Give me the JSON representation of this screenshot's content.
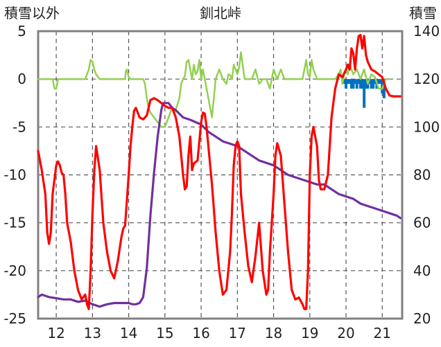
{
  "chart_data": {
    "type": "line",
    "title": "釧北峠",
    "ylabel_left": "積雪以外",
    "ylabel_right": "積雪",
    "x_ticks": [
      "12",
      "13",
      "14",
      "15",
      "16",
      "17",
      "18",
      "19",
      "20",
      "21"
    ],
    "x_tick_values": [
      12,
      13,
      14,
      15,
      16,
      17,
      18,
      19,
      20,
      21
    ],
    "x_range": [
      11.5,
      21.55
    ],
    "y_left_range": [
      -25,
      5
    ],
    "y_left_ticks": [
      "5",
      "0",
      "-5",
      "-10",
      "-15",
      "-20",
      "-25"
    ],
    "y_left_tick_values": [
      5,
      0,
      -5,
      -10,
      -15,
      -20,
      -25
    ],
    "y_right_range": [
      20,
      140
    ],
    "y_right_ticks": [
      "140",
      "120",
      "100",
      "80",
      "60",
      "40",
      "20"
    ],
    "y_right_tick_values": [
      140,
      120,
      100,
      80,
      60,
      40,
      20
    ],
    "grid": "dashed vertical and horizontal",
    "colors": {
      "temperature": "#ff0000",
      "wind": "#92d050",
      "precipitation": "#0070c0",
      "snow_depth": "#7030a0",
      "grid": "#555555",
      "frame": "#808080"
    },
    "series": [
      {
        "name": "temperature",
        "axis": "left",
        "color": "#ff0000",
        "x": [
          11.5,
          11.6,
          11.7,
          11.75,
          11.8,
          11.85,
          11.9,
          12.0,
          12.05,
          12.1,
          12.15,
          12.2,
          12.25,
          12.3,
          12.4,
          12.5,
          12.6,
          12.7,
          12.8,
          12.85,
          12.9,
          12.95,
          13.0,
          13.05,
          13.1,
          13.2,
          13.3,
          13.4,
          13.5,
          13.6,
          13.7,
          13.8,
          13.85,
          13.9,
          14.0,
          14.05,
          14.1,
          14.15,
          14.2,
          14.3,
          14.4,
          14.45,
          14.5,
          14.6,
          14.7,
          14.8,
          14.9,
          15.0,
          15.1,
          15.2,
          15.3,
          15.4,
          15.5,
          15.55,
          15.6,
          15.65,
          15.7,
          15.75,
          15.8,
          15.9,
          16.0,
          16.05,
          16.1,
          16.15,
          16.2,
          16.3,
          16.4,
          16.5,
          16.6,
          16.7,
          16.8,
          16.85,
          16.9,
          16.95,
          17.0,
          17.05,
          17.1,
          17.2,
          17.3,
          17.4,
          17.5,
          17.6,
          17.7,
          17.8,
          17.85,
          17.9,
          18.0,
          18.05,
          18.1,
          18.2,
          18.3,
          18.4,
          18.5,
          18.6,
          18.7,
          18.8,
          18.85,
          18.9,
          18.95,
          19.0,
          19.05,
          19.1,
          19.2,
          19.25,
          19.3,
          19.4,
          19.5,
          19.6,
          19.7,
          19.8,
          19.9,
          20.0,
          20.05,
          20.1,
          20.15,
          20.2,
          20.25,
          20.3,
          20.35,
          20.4,
          20.45,
          20.5,
          20.55,
          20.6,
          20.7,
          20.8,
          20.9,
          21.0,
          21.1,
          21.2,
          21.3,
          21.4,
          21.5
        ],
        "values": [
          -7.5,
          -9.5,
          -12,
          -16,
          -17.2,
          -16,
          -12,
          -9,
          -8.6,
          -9,
          -9.8,
          -10,
          -12,
          -15,
          -17,
          -20,
          -22,
          -23,
          -22.5,
          -23.5,
          -24,
          -20,
          -14,
          -9.5,
          -7,
          -9.5,
          -15,
          -18,
          -20,
          -20.8,
          -19,
          -16.5,
          -15.6,
          -15.3,
          -10,
          -7,
          -5,
          -3.3,
          -3,
          -4,
          -4.2,
          -4,
          -3.8,
          -2.2,
          -2,
          -2.2,
          -2.5,
          -2.8,
          -3,
          -3,
          -4,
          -6,
          -10,
          -11.5,
          -11.2,
          -8,
          -6,
          -9.5,
          -8.8,
          -8.5,
          -4.5,
          -3.5,
          -3.6,
          -5,
          -7,
          -11,
          -16,
          -20,
          -22.5,
          -22,
          -18,
          -14,
          -9,
          -7,
          -6.5,
          -7,
          -12,
          -16,
          -19.5,
          -21.2,
          -18.5,
          -15,
          -20,
          -22.5,
          -22,
          -18,
          -12,
          -8,
          -6.7,
          -8,
          -13,
          -18,
          -22,
          -23,
          -22.8,
          -23.5,
          -24,
          -24,
          -20,
          -10,
          -6,
          -5,
          -7,
          -10.5,
          -11.5,
          -11.5,
          -10,
          -4,
          -1,
          0.5,
          0.2,
          1,
          1.5,
          1,
          3.2,
          2.7,
          1,
          3.2,
          4.5,
          4.6,
          3.2,
          4.5,
          2.5,
          1.8,
          1,
          0.8,
          0.5,
          0.2,
          -1,
          -1.7,
          -1.8,
          -1.8,
          -1.8
        ]
      },
      {
        "name": "wind",
        "axis": "left",
        "color": "#92d050",
        "x": [
          11.5,
          11.8,
          11.9,
          11.95,
          12.0,
          12.05,
          12.1,
          12.2,
          12.8,
          12.9,
          12.95,
          13.0,
          13.05,
          13.1,
          13.2,
          13.8,
          13.9,
          13.92,
          13.95,
          14.0,
          14.05,
          14.1,
          14.2,
          14.4,
          14.45,
          14.5,
          14.55,
          14.6,
          14.7,
          14.8,
          14.9,
          15.0,
          15.1,
          15.2,
          15.25,
          15.3,
          15.4,
          15.45,
          15.5,
          15.55,
          15.6,
          15.65,
          15.7,
          15.75,
          15.8,
          15.85,
          15.9,
          15.95,
          16.0,
          16.05,
          16.1,
          16.15,
          16.2,
          16.25,
          16.3,
          16.35,
          16.4,
          16.5,
          16.6,
          16.7,
          16.75,
          16.8,
          16.85,
          16.9,
          16.95,
          17.0,
          17.05,
          17.1,
          17.2,
          17.4,
          17.5,
          17.6,
          17.7,
          17.8,
          17.9,
          18.0,
          18.1,
          18.2,
          18.3,
          18.8,
          18.85,
          18.9,
          18.95,
          19.0,
          19.05,
          19.1,
          19.2,
          19.3,
          19.4,
          19.5,
          19.6,
          19.7,
          19.8,
          19.85,
          19.9,
          19.95,
          20.0,
          20.05,
          20.1,
          20.2,
          20.3,
          20.4,
          20.5,
          20.6,
          20.7,
          20.8,
          20.9,
          21.0,
          21.05,
          21.1,
          21.2
        ],
        "values": [
          0,
          0,
          0,
          -1,
          -1,
          0,
          0,
          0,
          0,
          1,
          2,
          1.8,
          1,
          0.5,
          0,
          0,
          0,
          0.8,
          1,
          0.2,
          0,
          0,
          0,
          0,
          -0.5,
          -2,
          -3,
          -3.5,
          -4,
          -4.5,
          -5,
          -5,
          -4,
          -3,
          -3.6,
          -3.2,
          -2,
          -0.5,
          0,
          0.3,
          1.8,
          2,
          1,
          0,
          1.5,
          0.5,
          0.8,
          2,
          0,
          1,
          0,
          -1,
          -2,
          -3,
          -4,
          -2,
          0,
          1,
          0,
          -0.5,
          0.5,
          0.4,
          0,
          1.5,
          1,
          0.5,
          1.2,
          2.8,
          0,
          0,
          1,
          -0.5,
          0,
          0,
          -1,
          1,
          0,
          1,
          0,
          0,
          1,
          2,
          0.5,
          0.2,
          2,
          1,
          0,
          0,
          0,
          0,
          0,
          0,
          0.5,
          1,
          -0.5,
          0.5,
          1,
          0.5,
          1.5,
          0.5,
          1,
          0,
          1,
          -0.5,
          0.5,
          0.2,
          -1,
          -1,
          -0.5,
          0,
          0
        ]
      },
      {
        "name": "precipitation",
        "axis": "left",
        "color": "#0070c0",
        "x": [
          19.95,
          20.0,
          20.05,
          20.1,
          20.15,
          20.2,
          20.25,
          20.3,
          20.35,
          20.4,
          20.45,
          20.5,
          20.55,
          20.6,
          20.65,
          20.7,
          20.75,
          20.8,
          20.85,
          20.9,
          20.95,
          21.0,
          21.05
        ],
        "values": [
          -0.5,
          -1,
          -0.5,
          -0.5,
          -1,
          -1,
          -0.5,
          -1,
          -0.5,
          -1,
          -1,
          -3,
          -1,
          -1,
          -0.5,
          -1,
          -1,
          -0.5,
          -1,
          -0.5,
          -0.5,
          -1.5,
          -2
        ]
      },
      {
        "name": "snow_depth",
        "axis": "right",
        "color": "#7030a0",
        "x": [
          11.5,
          11.6,
          11.7,
          11.8,
          12.0,
          12.2,
          12.4,
          12.6,
          12.8,
          13.0,
          13.1,
          13.2,
          13.4,
          13.6,
          13.8,
          14.0,
          14.1,
          14.2,
          14.3,
          14.4,
          14.5,
          14.6,
          14.7,
          14.8,
          14.9,
          14.95,
          15.0,
          15.1,
          15.2,
          15.3,
          15.5,
          15.7,
          16.0,
          16.2,
          16.4,
          16.6,
          16.8,
          17.0,
          17.2,
          17.4,
          17.6,
          17.8,
          18.0,
          18.2,
          18.4,
          18.6,
          18.8,
          19.0,
          19.2,
          19.4,
          19.6,
          19.8,
          20.0,
          20.2,
          20.4,
          20.6,
          20.8,
          21.0,
          21.2,
          21.4,
          21.5
        ],
        "values": [
          29,
          30,
          29.5,
          29,
          28.5,
          28,
          28,
          27,
          27.5,
          26,
          25.5,
          25,
          26,
          26.5,
          26.5,
          26.5,
          26,
          26,
          26.5,
          29,
          41,
          63,
          81,
          96,
          107,
          110,
          110,
          110,
          108,
          107,
          104,
          103,
          101,
          98,
          96,
          94,
          93,
          92,
          90,
          88,
          86,
          85,
          84,
          82,
          80,
          79,
          78,
          77,
          76,
          76,
          74,
          72,
          71,
          70,
          68,
          67,
          66,
          65,
          64,
          63,
          62
        ]
      }
    ]
  }
}
